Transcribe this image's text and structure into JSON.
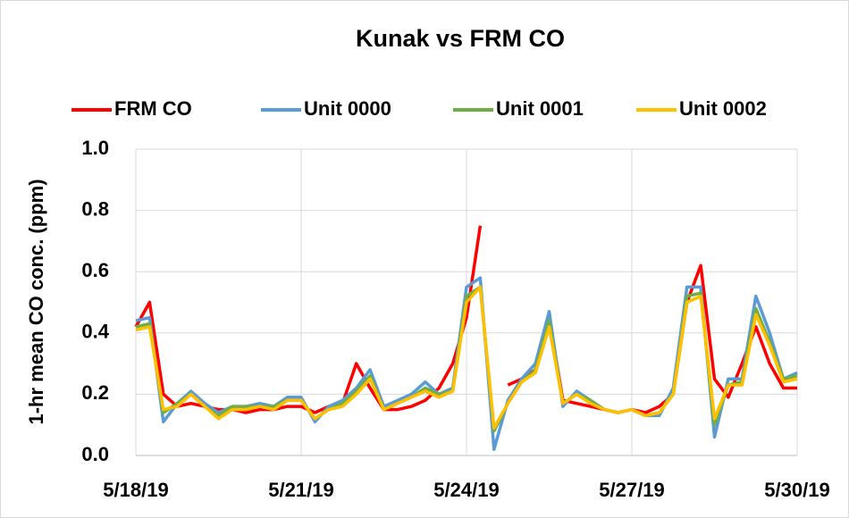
{
  "chart_data": {
    "type": "line",
    "title": "Kunak vs FRM CO",
    "y_label": "1-hr mean CO conc. (ppm)",
    "x": [
      0,
      0.25,
      0.5,
      0.75,
      1,
      1.25,
      1.5,
      1.75,
      2,
      2.25,
      2.5,
      2.75,
      3,
      3.25,
      3.5,
      3.75,
      4,
      4.25,
      4.5,
      4.75,
      5,
      5.25,
      5.5,
      5.75,
      6,
      6.25,
      6.5,
      6.75,
      7,
      7.25,
      7.5,
      7.75,
      8,
      8.25,
      8.5,
      8.75,
      9,
      9.25,
      9.5,
      9.75,
      10,
      10.25,
      10.5,
      10.75,
      11,
      11.25,
      11.5,
      11.75,
      12
    ],
    "series": [
      {
        "name": "FRM CO",
        "color": "#ff0000",
        "values": [
          0.42,
          0.5,
          0.2,
          0.16,
          0.17,
          0.16,
          0.15,
          0.15,
          0.14,
          0.15,
          0.15,
          0.16,
          0.16,
          0.14,
          0.16,
          0.17,
          0.3,
          0.22,
          0.15,
          0.15,
          0.16,
          0.18,
          0.22,
          0.3,
          0.45,
          0.75,
          null,
          0.23,
          0.25,
          0.28,
          0.45,
          0.18,
          0.17,
          0.16,
          0.15,
          0.14,
          0.15,
          0.14,
          0.16,
          0.2,
          0.5,
          0.62,
          0.25,
          0.19,
          0.3,
          0.42,
          0.3,
          0.22,
          0.22
        ]
      },
      {
        "name": "Unit 0000",
        "color": "#5b9bd5",
        "values": [
          0.44,
          0.45,
          0.11,
          0.17,
          0.21,
          0.17,
          0.14,
          0.16,
          0.16,
          0.17,
          0.16,
          0.19,
          0.19,
          0.11,
          0.16,
          0.18,
          0.22,
          0.28,
          0.16,
          0.18,
          0.2,
          0.24,
          0.2,
          0.22,
          0.55,
          0.58,
          0.02,
          0.18,
          0.25,
          0.3,
          0.47,
          0.16,
          0.21,
          0.18,
          0.15,
          0.14,
          0.15,
          0.13,
          0.13,
          0.22,
          0.55,
          0.55,
          0.06,
          0.25,
          0.25,
          0.52,
          0.4,
          0.25,
          0.27
        ]
      },
      {
        "name": "Unit 0001",
        "color": "#70ad47",
        "values": [
          0.42,
          0.43,
          0.14,
          0.17,
          0.2,
          0.16,
          0.13,
          0.16,
          0.16,
          0.16,
          0.16,
          0.18,
          0.18,
          0.12,
          0.15,
          0.17,
          0.21,
          0.26,
          0.15,
          0.17,
          0.19,
          0.22,
          0.2,
          0.21,
          0.52,
          0.55,
          0.08,
          0.17,
          0.24,
          0.28,
          0.44,
          0.17,
          0.2,
          0.18,
          0.15,
          0.14,
          0.15,
          0.13,
          0.14,
          0.2,
          0.52,
          0.53,
          0.1,
          0.23,
          0.24,
          0.48,
          0.37,
          0.25,
          0.26
        ]
      },
      {
        "name": "Unit 0002",
        "color": "#ffc000",
        "values": [
          0.41,
          0.42,
          0.15,
          0.16,
          0.2,
          0.16,
          0.12,
          0.15,
          0.15,
          0.16,
          0.15,
          0.18,
          0.18,
          0.12,
          0.15,
          0.16,
          0.2,
          0.25,
          0.15,
          0.17,
          0.19,
          0.21,
          0.19,
          0.21,
          0.5,
          0.55,
          0.09,
          0.17,
          0.24,
          0.27,
          0.42,
          0.17,
          0.2,
          0.17,
          0.15,
          0.14,
          0.15,
          0.13,
          0.14,
          0.2,
          0.5,
          0.52,
          0.12,
          0.23,
          0.23,
          0.46,
          0.36,
          0.24,
          0.25
        ]
      }
    ],
    "xlim": [
      0,
      12
    ],
    "xticks": [
      {
        "value": 0,
        "label": "5/18/19"
      },
      {
        "value": 3,
        "label": "5/21/19"
      },
      {
        "value": 6,
        "label": "5/24/19"
      },
      {
        "value": 9,
        "label": "5/27/19"
      },
      {
        "value": 12,
        "label": "5/30/19"
      }
    ],
    "ylim": [
      0,
      1
    ],
    "yticks": [
      {
        "value": 0,
        "label": "0.0"
      },
      0.2,
      0.4,
      0.6,
      0.8,
      {
        "value": 1,
        "label": "1.0"
      }
    ],
    "grid": true,
    "legend": "top"
  }
}
